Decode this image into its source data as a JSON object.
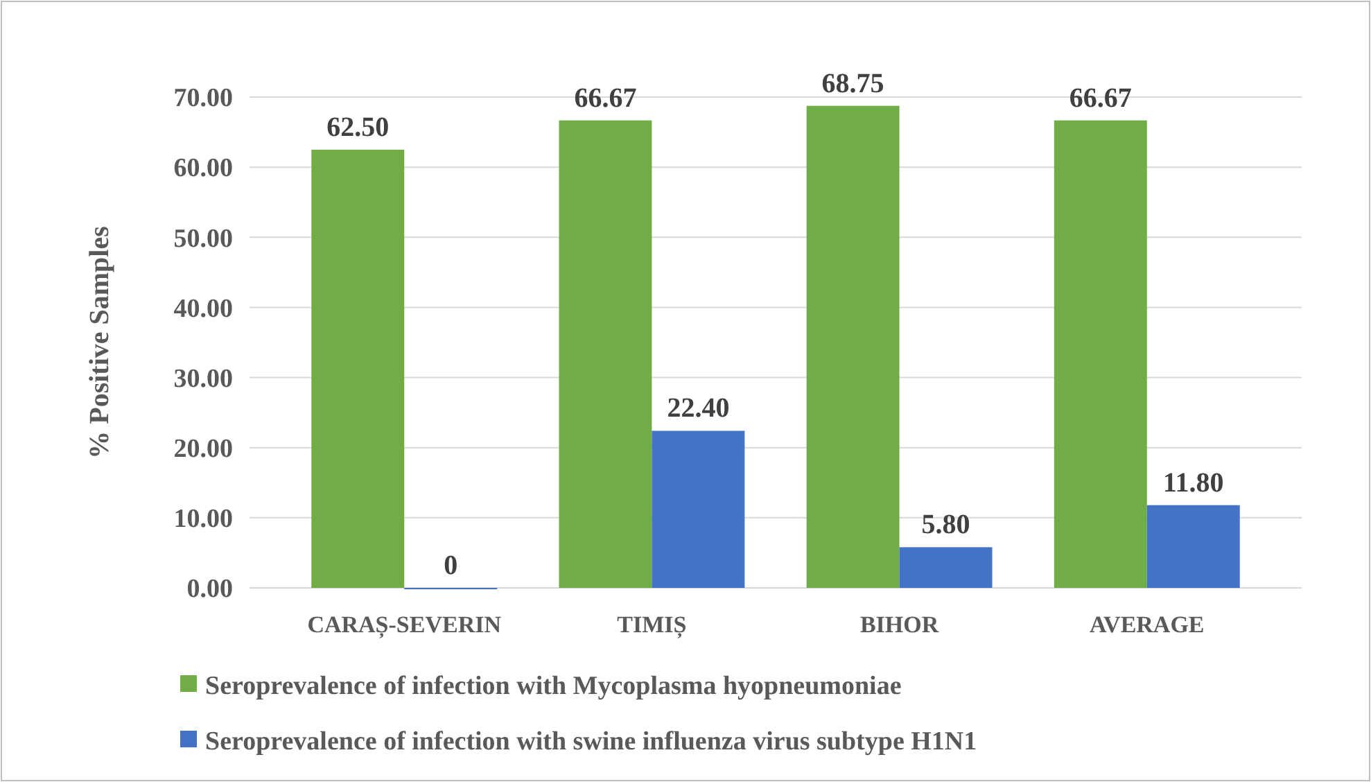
{
  "chart_data": {
    "type": "bar",
    "ylabel": "% Positive Samples",
    "categories": [
      "CARAȘ-SEVERIN",
      "TIMIȘ",
      "BIHOR",
      "AVERAGE"
    ],
    "series": [
      {
        "name": "Seroprevalence of infection with Mycoplasma hyopneumoniae",
        "color": "#70ad47",
        "values": [
          62.5,
          66.67,
          68.75,
          66.67
        ],
        "value_labels": [
          "62.50",
          "66.67",
          "68.75",
          "66.67"
        ]
      },
      {
        "name": "Seroprevalence of infection with swine influenza virus subtype H1N1",
        "color": "#4472c4",
        "values": [
          0,
          22.4,
          5.8,
          11.8
        ],
        "value_labels": [
          "0",
          "22.40",
          "5.80",
          "11.80"
        ]
      }
    ],
    "ylim": [
      0,
      70
    ],
    "yticks": [
      {
        "value": 0,
        "label": "0.00"
      },
      {
        "value": 10,
        "label": "10.00"
      },
      {
        "value": 20,
        "label": "20.00"
      },
      {
        "value": 30,
        "label": "30.00"
      },
      {
        "value": 40,
        "label": "40.00"
      },
      {
        "value": 50,
        "label": "50.00"
      },
      {
        "value": 60,
        "label": "60.00"
      },
      {
        "value": 70,
        "label": "70.00"
      }
    ],
    "grid": "y",
    "legend": "bottom"
  }
}
